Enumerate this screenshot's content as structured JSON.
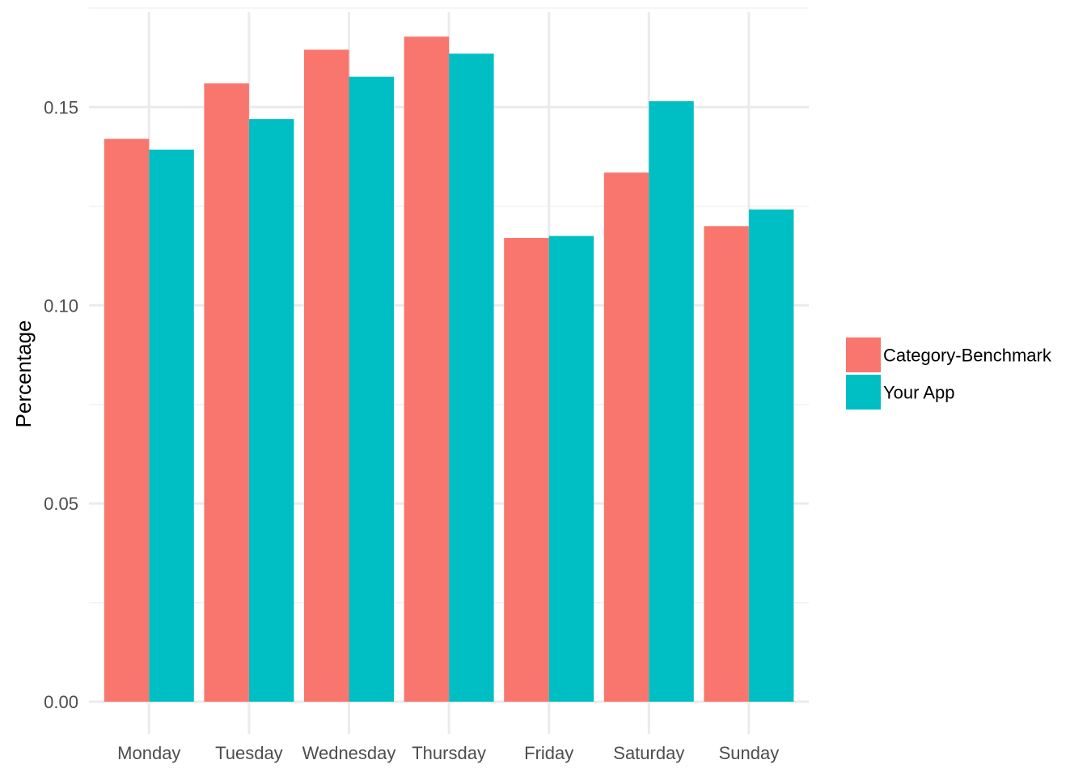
{
  "chart_data": {
    "type": "bar",
    "categories": [
      "Monday",
      "Tuesday",
      "Wednesday",
      "Thursday",
      "Friday",
      "Saturday",
      "Sunday"
    ],
    "series": [
      {
        "name": "Category-Benchmark",
        "color": "#F8766D",
        "values": [
          0.142,
          0.156,
          0.1645,
          0.1678,
          0.117,
          0.1335,
          0.12
        ]
      },
      {
        "name": "Your App",
        "color": "#00BFC4",
        "values": [
          0.1393,
          0.147,
          0.1577,
          0.1635,
          0.1175,
          0.1515,
          0.1242
        ]
      }
    ],
    "title": "",
    "xlabel": "",
    "ylabel": "Percentage",
    "ylim": [
      0,
      0.175
    ],
    "yticks": [
      0,
      0.05,
      0.1,
      0.15
    ],
    "ytick_labels": [
      "0.00",
      "0.05",
      "0.10",
      "0.15"
    ],
    "grid": true,
    "legend_position": "right"
  }
}
